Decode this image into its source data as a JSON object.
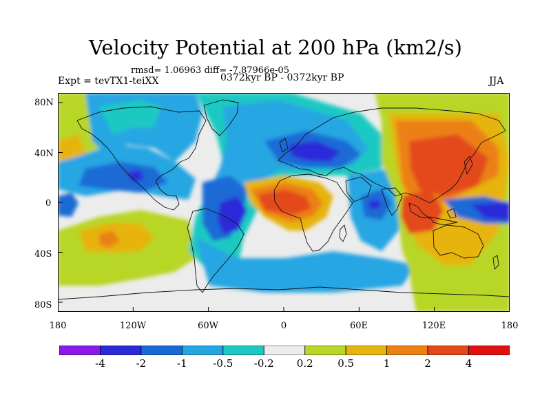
{
  "title": "Velocity Potential at 200 hPa (km2/s)",
  "stats": "rmsd= 1.06963 diff= -7.87966e-05",
  "experiment": "Expt = tevTX1-teiXX",
  "period": "0372kyr BP - 0372kyr BP",
  "season": "JJA",
  "lat_labels": [
    "80N",
    "40N",
    "0",
    "40S",
    "80S"
  ],
  "lon_labels": [
    "180",
    "120W",
    "60W",
    "0",
    "60E",
    "120E",
    "180"
  ],
  "colorbar": {
    "colors": [
      "#8a18e6",
      "#2a2ad8",
      "#1a6ad6",
      "#25a6e2",
      "#1ec9c2",
      "#ececec",
      "#b8d628",
      "#e6b40e",
      "#ec8012",
      "#e4481a",
      "#e01010"
    ],
    "labels": [
      "-4",
      "-2",
      "-1",
      "-0.5",
      "-0.2",
      "0.2",
      "0.5",
      "1",
      "2",
      "4"
    ]
  },
  "palette": {
    "dblue": "#2a2ad8",
    "blue": "#1a6ad6",
    "lblue": "#25a6e2",
    "cyan": "#1ec9c2",
    "white": "#ececec",
    "ygreen": "#b8d628",
    "yellow": "#e6b40e",
    "orange": "#ec8012",
    "red": "#e4481a"
  }
}
